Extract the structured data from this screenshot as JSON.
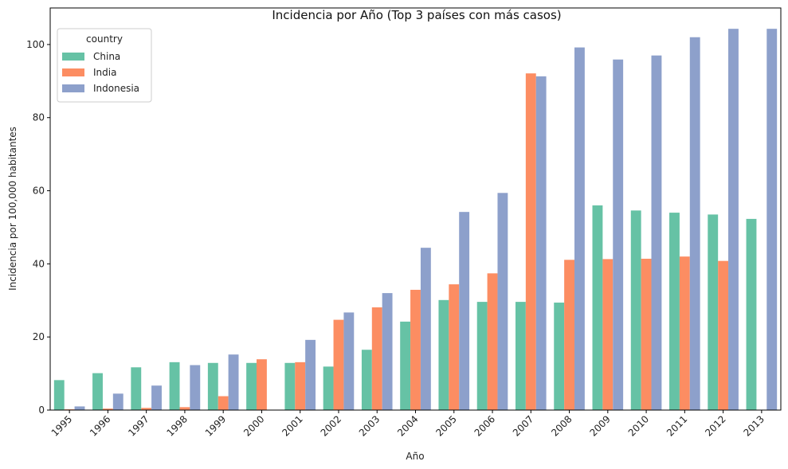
{
  "chart_data": {
    "type": "bar",
    "title": "Incidencia por Año (Top 3 países con más casos)",
    "xlabel": "Año",
    "ylabel": "Incidencia por 100,000 habitantes",
    "ylim": [
      0,
      110
    ],
    "yticks": [
      0,
      20,
      40,
      60,
      80,
      100
    ],
    "grid": false,
    "legend": {
      "title": "country",
      "placement": "top-left"
    },
    "categories": [
      "1995",
      "1996",
      "1997",
      "1998",
      "1999",
      "2000",
      "2001",
      "2002",
      "2003",
      "2004",
      "2005",
      "2006",
      "2007",
      "2008",
      "2009",
      "2010",
      "2011",
      "2012",
      "2013"
    ],
    "series": [
      {
        "name": "China",
        "color": "#66c2a5",
        "values": [
          8.2,
          10.1,
          11.7,
          13.1,
          12.9,
          12.9,
          12.9,
          11.9,
          16.5,
          24.2,
          30.1,
          29.6,
          29.6,
          29.4,
          56.0,
          54.6,
          54.0,
          53.5,
          52.3
        ]
      },
      {
        "name": "India",
        "color": "#fc8d62",
        "values": [
          0.2,
          0.4,
          0.6,
          0.8,
          3.8,
          13.9,
          13.1,
          24.7,
          28.1,
          32.9,
          34.4,
          37.4,
          92.1,
          41.1,
          41.3,
          41.4,
          42.0,
          40.8,
          null
        ]
      },
      {
        "name": "Indonesia",
        "color": "#8da0cb",
        "values": [
          1.0,
          4.5,
          6.7,
          12.3,
          15.2,
          null,
          19.2,
          26.7,
          32.0,
          44.4,
          54.2,
          59.4,
          91.3,
          99.2,
          95.9,
          97.0,
          102.0,
          104.3,
          104.3
        ]
      }
    ]
  }
}
